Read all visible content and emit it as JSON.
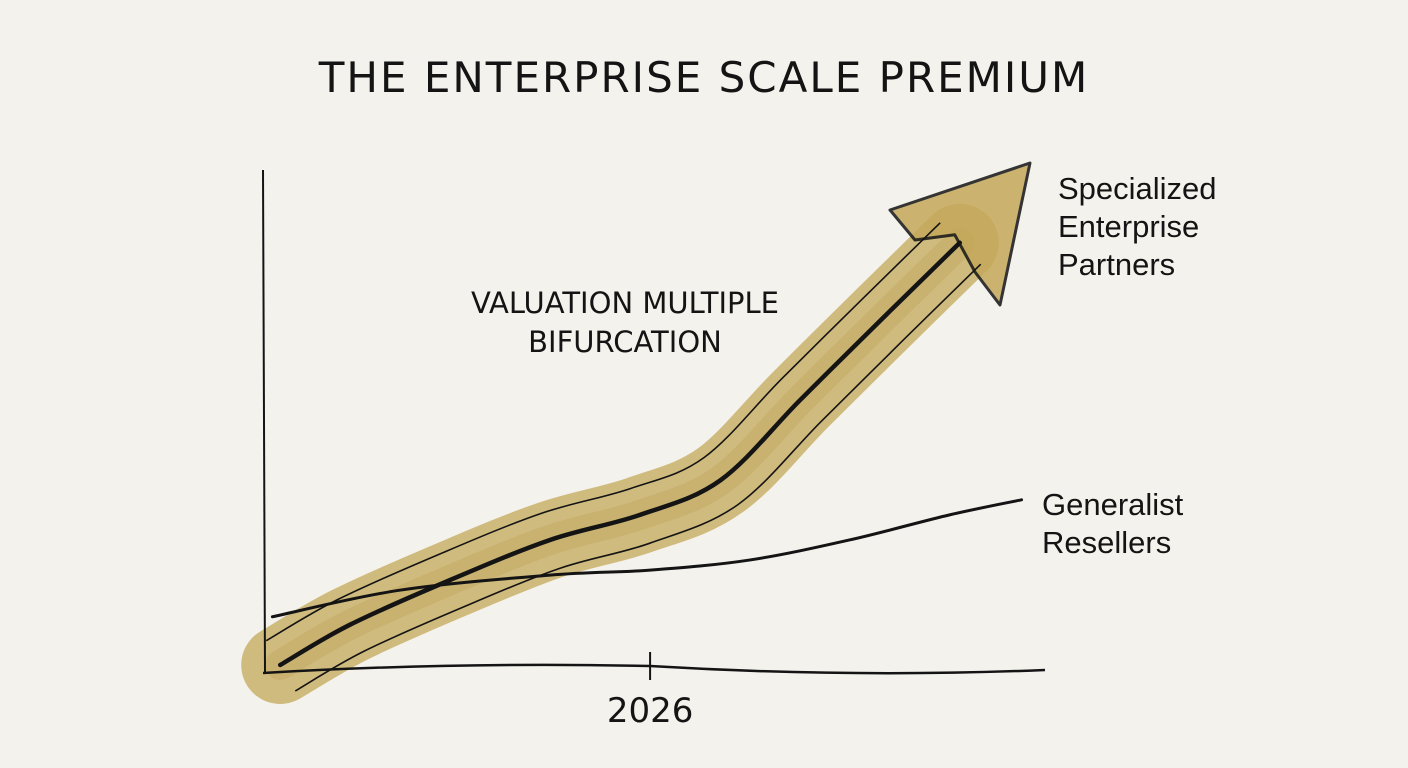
{
  "chart_data": {
    "type": "line",
    "title": "THE ENTERPRISE SCALE PREMIUM",
    "annotation": [
      "VALUATION MULTIPLE",
      "BIFURCATION"
    ],
    "x_ticks": [
      {
        "value": 49.5,
        "label": "2026"
      }
    ],
    "xlim": [
      0,
      100
    ],
    "ylim": [
      0,
      100
    ],
    "grid": false,
    "legend": "inline-right",
    "series": [
      {
        "name": "Specialized Enterprise Partners",
        "name_lines": [
          "Specialized",
          "Enterprise",
          "Partners"
        ],
        "style": "arrow",
        "x": [
          2.2,
          11.1,
          23.9,
          36.7,
          48.2,
          58.5,
          68.7,
          79.0,
          89.1
        ],
        "y": [
          1.4,
          9.4,
          18.3,
          26.3,
          31.3,
          38.2,
          54.2,
          70.1,
          85.5
        ]
      },
      {
        "name": "Generalist Resellers",
        "name_lines": [
          "Generalist",
          "Resellers"
        ],
        "style": "line",
        "x": [
          1.2,
          17.5,
          36.7,
          49.5,
          62.2,
          75.0,
          87.8,
          97.0
        ],
        "y": [
          11.0,
          16.3,
          19.3,
          20.3,
          22.3,
          26.3,
          31.3,
          34.3
        ]
      }
    ],
    "colors": {
      "band": "#c4a85a",
      "ink": "#141414",
      "paper": "#f4f2ec"
    }
  }
}
